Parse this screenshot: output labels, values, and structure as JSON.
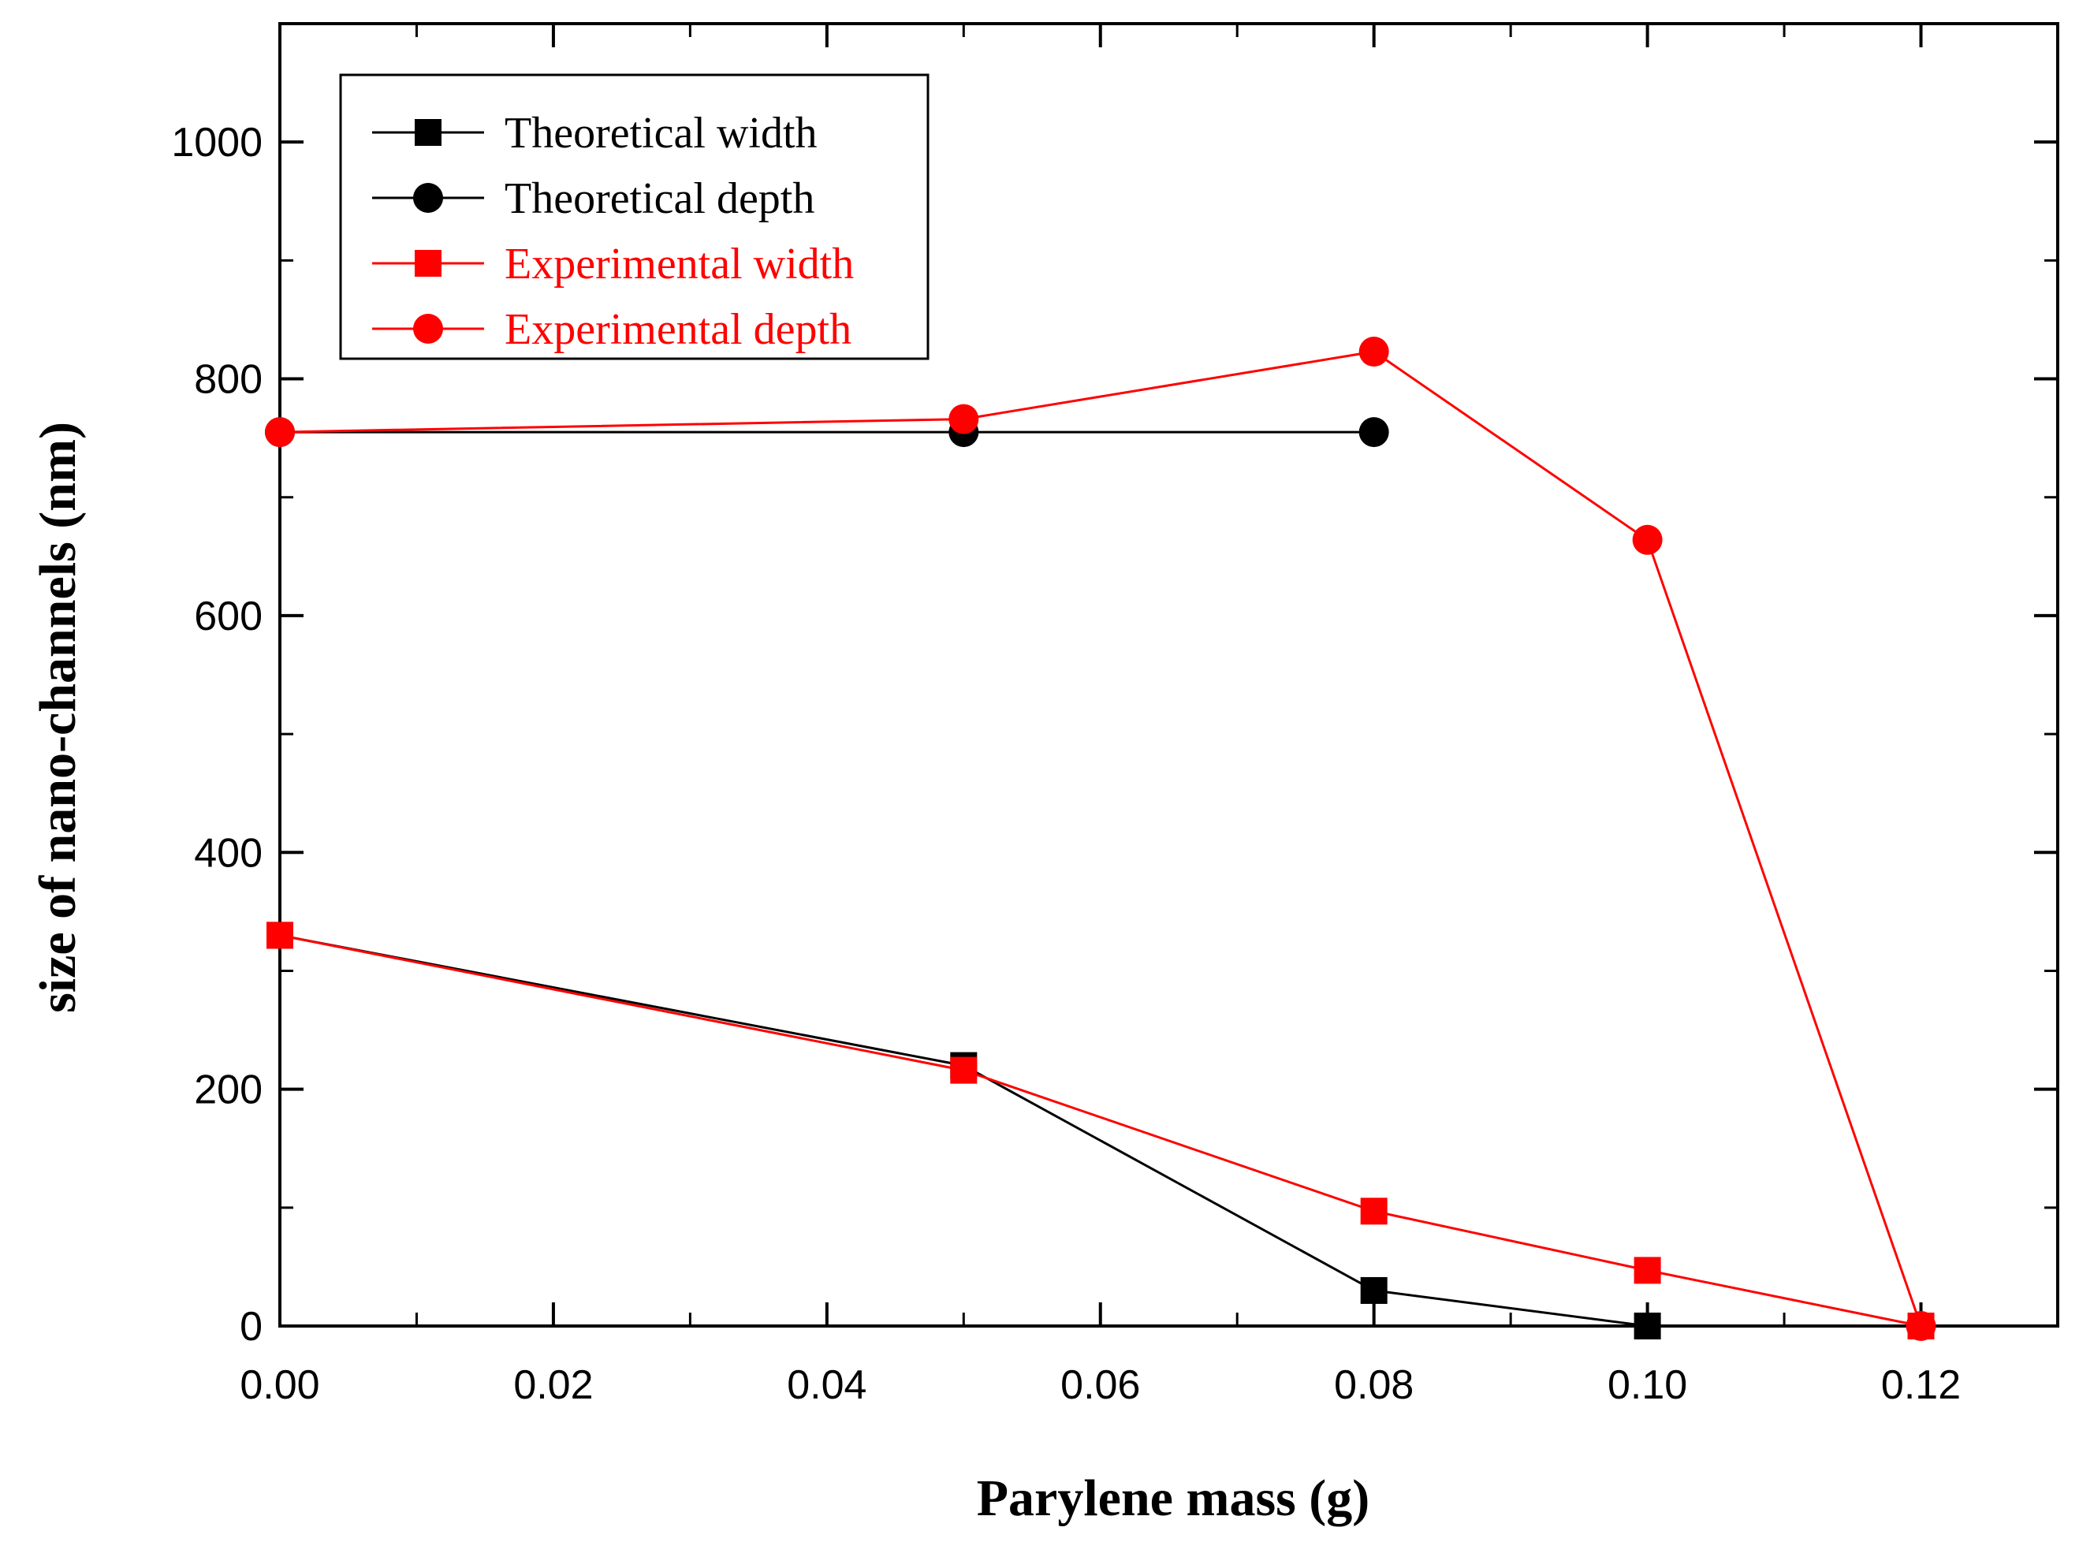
{
  "chart_data": {
    "type": "line",
    "title": "",
    "xlabel": "Parylene mass (g)",
    "ylabel": "size of nano-channels (nm)",
    "xlim": [
      0,
      0.13
    ],
    "ylim": [
      0,
      1100
    ],
    "x_ticks": [
      0.0,
      0.02,
      0.04,
      0.06,
      0.08,
      0.1,
      0.12
    ],
    "x_tick_labels": [
      "0.00",
      "0.02",
      "0.04",
      "0.06",
      "0.08",
      "0.10",
      "0.12"
    ],
    "x_minor_ticks": [
      0.01,
      0.03,
      0.05,
      0.07,
      0.09,
      0.11,
      0.13
    ],
    "y_ticks": [
      0,
      200,
      400,
      600,
      800,
      1000
    ],
    "y_tick_labels": [
      "0",
      "200",
      "400",
      "600",
      "800",
      "1000"
    ],
    "y_minor_ticks": [
      100,
      300,
      500,
      700,
      900
    ],
    "grid": false,
    "legend_position": "top-left",
    "series": [
      {
        "name": "Theoretical width",
        "color": "#000000",
        "marker": "square",
        "x": [
          0.0,
          0.05,
          0.08,
          0.1
        ],
        "y": [
          330,
          220,
          30,
          0
        ]
      },
      {
        "name": "Theoretical depth",
        "color": "#000000",
        "marker": "circle",
        "x": [
          0.0,
          0.05,
          0.08
        ],
        "y": [
          755,
          755,
          755
        ]
      },
      {
        "name": "Experimental width",
        "color": "#ff0000",
        "marker": "square",
        "x": [
          0.0,
          0.05,
          0.08,
          0.1,
          0.12
        ],
        "y": [
          330,
          216,
          97,
          47,
          0
        ]
      },
      {
        "name": "Experimental depth",
        "color": "#ff0000",
        "marker": "circle",
        "x": [
          0.0,
          0.05,
          0.08,
          0.1,
          0.12
        ],
        "y": [
          755,
          766,
          823,
          664,
          0
        ]
      }
    ]
  }
}
